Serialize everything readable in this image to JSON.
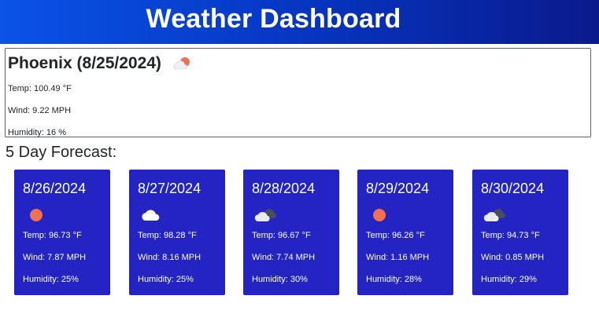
{
  "header": {
    "title": "Weather Dashboard"
  },
  "current": {
    "title": "Phoenix (8/25/2024)",
    "icon": "sun-cloud-icon",
    "temp": "Temp: 100.49 °F",
    "wind": "Wind: 9.22 MPH",
    "humidity": "Humidity: 16 %"
  },
  "forecast": {
    "heading": "5 Day Forecast:",
    "days": [
      {
        "date": "8/26/2024",
        "icon": "sun-icon",
        "temp": "Temp: 96.73 °F",
        "wind": "Wind: 7.87 MPH",
        "humidity": "Humidity: 25%"
      },
      {
        "date": "8/27/2024",
        "icon": "cloud-icon",
        "temp": "Temp: 98.28 °F",
        "wind": "Wind: 8.16 MPH",
        "humidity": "Humidity: 25%"
      },
      {
        "date": "8/28/2024",
        "icon": "dark-cloud-icon",
        "temp": "Temp: 96.67 °F",
        "wind": "Wind: 7.74 MPH",
        "humidity": "Humidity: 30%"
      },
      {
        "date": "8/29/2024",
        "icon": "sun-icon",
        "temp": "Temp: 96.26 °F",
        "wind": "Wind: 1.16 MPH",
        "humidity": "Humidity: 28%"
      },
      {
        "date": "8/30/2024",
        "icon": "dark-cloud-icon",
        "temp": "Temp: 94.73 °F",
        "wind": "Wind: 0.85 MPH",
        "humidity": "Humidity: 29%"
      }
    ]
  },
  "colors": {
    "header_start": "#0a53e6",
    "header_end": "#0a1a8c",
    "card_bg": "#2424c4",
    "sun": "#f0704f"
  }
}
